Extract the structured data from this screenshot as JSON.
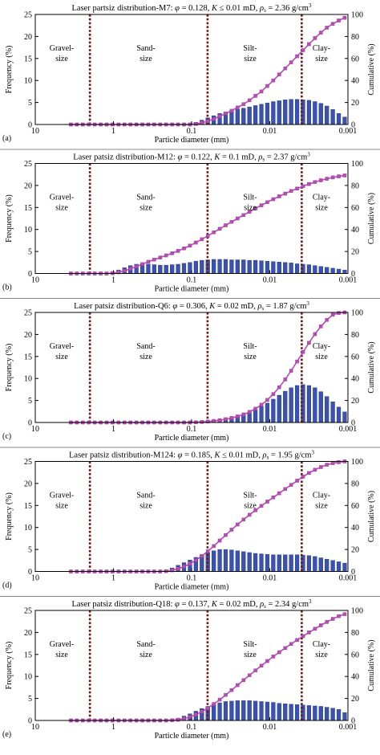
{
  "figure": {
    "xlabel": "Particle diameter (mm)",
    "ylabel_left": "Frequency (%)",
    "ylabel_right": "Cumulative (%)",
    "left_ticks": [
      "0",
      "5",
      "10",
      "15",
      "20",
      "25"
    ],
    "right_ticks": [
      "0",
      "20",
      "40",
      "60",
      "80",
      "100"
    ],
    "x_ticks": [
      "10",
      "1",
      "0.1",
      "0.01",
      "0.001"
    ],
    "class_labels": [
      {
        "line1": "Gravel-",
        "line2": "size"
      },
      {
        "line1": "Sand-",
        "line2": "size"
      },
      {
        "line1": "Silt-",
        "line2": "size"
      },
      {
        "line1": "Clay-",
        "line2": "size"
      }
    ]
  },
  "colors": {
    "bar": "#3a52b0",
    "bar_edge": "#1a2a70",
    "cumulative": "#b54db5",
    "boundary": "#7a1010"
  },
  "chart_data": [
    {
      "type": "bar",
      "panel": "(a)",
      "title": "Laser partsiz distribution-M7: φ = 0.128, K ≤ 0.01 mD, ρs = 2.36 g/cm³",
      "title_parts": {
        "name": "Laser partsiz distribution-M7: ",
        "phi": "0.128",
        "k_op": " ≤ ",
        "k": "0.01 mD",
        "rho": "2.36 g/cm"
      },
      "x_scale": "log-reversed",
      "xlim": [
        10,
        0.001
      ],
      "ylim": [
        0,
        25
      ],
      "y2lim": [
        0,
        100
      ],
      "boundaries_mm": [
        2,
        0.0625,
        0.0039
      ],
      "x_mm_start": 3.5,
      "x_mm_end": 0.0011,
      "frequency": [
        0,
        0,
        0,
        0,
        0,
        0,
        0,
        0,
        0,
        0,
        0,
        0,
        0,
        0,
        0,
        0,
        0,
        0,
        0,
        0,
        0,
        0.5,
        1,
        1.5,
        2,
        2.5,
        2.8,
        3.1,
        3.4,
        3.7,
        4,
        4.3,
        4.6,
        4.9,
        5.2,
        5.4,
        5.6,
        5.7,
        5.7,
        5.6,
        5.5,
        5.2,
        4.8,
        4.2,
        3.4,
        2.5,
        1.7
      ],
      "cumulative": [
        0,
        0,
        0,
        0,
        0,
        0,
        0,
        0,
        0,
        0,
        0,
        0,
        0,
        0,
        0,
        0,
        0,
        0,
        0,
        0,
        0,
        0.5,
        1.5,
        3,
        5,
        7.5,
        10,
        12.5,
        15.5,
        18.5,
        22,
        26,
        30,
        35,
        40,
        45.5,
        51,
        56.5,
        62,
        67.5,
        73,
        78.5,
        83.5,
        88,
        91.5,
        94.5,
        97
      ]
    },
    {
      "type": "bar",
      "panel": "(b)",
      "title": "Laser patsiz distribution-M12: φ = 0.122, K = 0.1 mD, ρs = 2.37 g/cm³",
      "title_parts": {
        "name": "Laser patsiz distribution-M12: ",
        "phi": "0.122",
        "k_op": " = ",
        "k": "0.1 mD",
        "rho": "2.37 g/cm"
      },
      "x_scale": "log-reversed",
      "xlim": [
        10,
        0.001
      ],
      "ylim": [
        0,
        25
      ],
      "y2lim": [
        0,
        100
      ],
      "boundaries_mm": [
        2,
        0.0625,
        0.0039
      ],
      "x_mm_start": 3.5,
      "x_mm_end": 0.0011,
      "frequency": [
        0,
        0,
        0,
        0,
        0,
        0,
        0,
        0.3,
        0.8,
        1.3,
        1.8,
        2.1,
        2.2,
        2.1,
        2,
        1.9,
        1.9,
        2,
        2.1,
        2.3,
        2.5,
        2.8,
        3,
        3.1,
        3.2,
        3.2,
        3.2,
        3.1,
        3.1,
        3.1,
        3,
        3,
        2.9,
        2.8,
        2.7,
        2.6,
        2.5,
        2.4,
        2.2,
        2.1,
        2,
        1.8,
        1.6,
        1.4,
        1.2,
        1,
        0.8
      ],
      "cumulative": [
        0,
        0,
        0,
        0,
        0,
        0,
        0,
        0.3,
        1.1,
        2.4,
        4.2,
        6.3,
        8.5,
        10.6,
        12.6,
        14.5,
        16.4,
        18.4,
        20.5,
        22.8,
        25.3,
        28.1,
        31.1,
        34.2,
        37.4,
        40.6,
        43.8,
        46.9,
        50,
        53.1,
        56.1,
        59.1,
        62,
        64.8,
        67.5,
        70.1,
        72.6,
        75,
        77.2,
        79.3,
        81.3,
        83.1,
        84.7,
        86.1,
        87.3,
        88.3,
        89.1
      ]
    },
    {
      "type": "bar",
      "panel": "(c)",
      "title": "Laser patsiz distribution-Q6: φ = 0.306, K = 0.02 mD, ρs = 1.87 g/cm³",
      "title_parts": {
        "name": "Laser patsiz distribution-Q6: ",
        "phi": "0.306",
        "k_op": " = ",
        "k": "0.02 mD",
        "rho": "1.87 g/cm"
      },
      "x_scale": "log-reversed",
      "xlim": [
        10,
        0.001
      ],
      "ylim": [
        0,
        25
      ],
      "y2lim": [
        0,
        100
      ],
      "boundaries_mm": [
        2,
        0.0625,
        0.0039
      ],
      "x_mm_start": 3.5,
      "x_mm_end": 0.0011,
      "frequency": [
        0,
        0,
        0,
        0,
        0,
        0,
        0,
        0,
        0,
        0,
        0,
        0,
        0,
        0,
        0,
        0,
        0,
        0,
        0,
        0,
        0,
        0.2,
        0.3,
        0.4,
        0.5,
        0.7,
        0.9,
        1.1,
        1.4,
        1.8,
        2.3,
        2.9,
        3.6,
        4.4,
        5.3,
        6.2,
        7.1,
        7.9,
        8.4,
        8.6,
        8.4,
        7.9,
        7,
        5.9,
        4.7,
        3.5,
        2.4
      ],
      "cumulative": [
        0,
        0,
        0,
        0,
        0,
        0,
        0,
        0,
        0,
        0,
        0,
        0,
        0,
        0,
        0,
        0,
        0,
        0,
        0,
        0,
        0,
        0.2,
        0.5,
        0.9,
        1.4,
        2.1,
        3,
        4.1,
        5.5,
        7.3,
        9.6,
        12.5,
        16.1,
        20.5,
        25.8,
        32,
        39.1,
        47,
        55.4,
        64,
        72.4,
        80.3,
        87.3,
        93.2,
        97.9,
        99.5,
        100
      ]
    },
    {
      "type": "bar",
      "panel": "(d)",
      "title": "Laser patsiz distribution-M124: φ = 0.185, K ≤ 0.01 mD, ρs = 1.95 g/cm³",
      "title_parts": {
        "name": "Laser patsiz distribution-M124: ",
        "phi": "0.185",
        "k_op": " ≤ ",
        "k": "0.01 mD",
        "rho": "1.95 g/cm"
      },
      "x_scale": "log-reversed",
      "xlim": [
        10,
        0.001
      ],
      "ylim": [
        0,
        25
      ],
      "y2lim": [
        0,
        100
      ],
      "boundaries_mm": [
        2,
        0.0625,
        0.0039
      ],
      "x_mm_start": 3.5,
      "x_mm_end": 0.0011,
      "frequency": [
        0,
        0,
        0,
        0,
        0,
        0,
        0,
        0,
        0,
        0,
        0,
        0,
        0,
        0,
        0,
        0,
        0.3,
        0.8,
        1.4,
        2,
        2.6,
        3.2,
        3.8,
        4.3,
        4.7,
        5,
        5,
        4.9,
        4.7,
        4.5,
        4.3,
        4.1,
        4,
        3.9,
        3.8,
        3.8,
        3.8,
        3.8,
        3.8,
        3.7,
        3.6,
        3.4,
        3.1,
        2.8,
        2.5,
        2.2,
        1.9
      ],
      "cumulative": [
        0,
        0,
        0,
        0,
        0,
        0,
        0,
        0,
        0,
        0,
        0,
        0,
        0,
        0,
        0,
        0,
        0.3,
        1.1,
        2.5,
        4.5,
        7.1,
        10.3,
        14.1,
        18.4,
        23.1,
        28.1,
        33.1,
        38,
        42.7,
        47.2,
        51.5,
        55.6,
        59.6,
        63.5,
        67.3,
        71.1,
        74.9,
        78.7,
        82.5,
        86.2,
        89.5,
        92.4,
        94.9,
        97,
        98.4,
        99.3,
        100
      ]
    },
    {
      "type": "bar",
      "panel": "(e)",
      "title": "Laser patsiz distribution-Q18: φ = 0.137, K = 0.02 mD, ρs = 2.34 g/cm³",
      "title_parts": {
        "name": "Laser patsiz distribution-Q18: ",
        "phi": "0.137",
        "k_op": " = ",
        "k": "0.02 mD",
        "rho": "2.34 g/cm"
      },
      "x_scale": "log-reversed",
      "xlim": [
        10,
        0.001
      ],
      "ylim": [
        0,
        25
      ],
      "y2lim": [
        0,
        100
      ],
      "boundaries_mm": [
        2,
        0.0625,
        0.0039
      ],
      "x_mm_start": 3.5,
      "x_mm_end": 0.0011,
      "frequency": [
        0,
        0,
        0,
        0,
        0,
        0,
        0,
        0,
        0,
        0,
        0,
        0,
        0,
        0,
        0,
        0,
        0,
        0.2,
        0.5,
        1,
        1.5,
        2.1,
        2.7,
        3.2,
        3.7,
        4,
        4.3,
        4.4,
        4.5,
        4.5,
        4.5,
        4.4,
        4.3,
        4.2,
        4.1,
        3.9,
        3.8,
        3.7,
        3.6,
        3.5,
        3.4,
        3.3,
        3.2,
        3,
        2.8,
        2.5,
        1.8
      ],
      "cumulative": [
        0,
        0,
        0,
        0,
        0,
        0,
        0,
        0,
        0,
        0,
        0,
        0,
        0,
        0,
        0,
        0,
        0,
        0.2,
        0.7,
        1.7,
        3.2,
        5.3,
        8,
        11.2,
        14.9,
        18.9,
        23.2,
        27.6,
        32.1,
        36.6,
        41.1,
        45.5,
        49.8,
        54,
        58.1,
        62,
        65.8,
        69.5,
        73.1,
        76.6,
        80,
        83.3,
        86.5,
        89.5,
        92.3,
        94.8,
        96.6
      ]
    }
  ]
}
